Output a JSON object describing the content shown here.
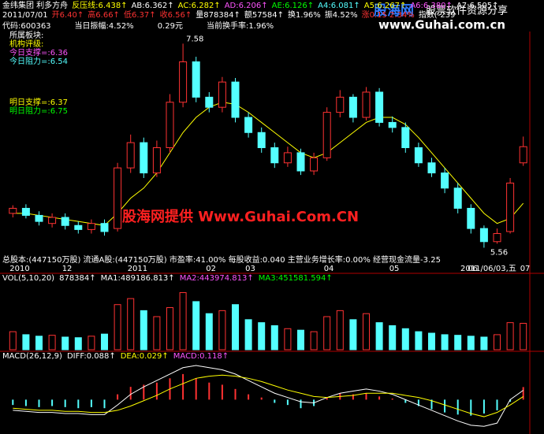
{
  "header": {
    "row1": [
      {
        "text": "金纬集团 利多方舟",
        "color": "#ffffff"
      },
      {
        "text": "反压线:6.438↑",
        "color": "#ffff00"
      },
      {
        "text": "AB:6.362↑",
        "color": "#ffffff"
      },
      {
        "text": "AC:6.282↑",
        "color": "#ffff00"
      },
      {
        "text": "AD:6.206↑",
        "color": "#ff55ff"
      },
      {
        "text": "AE:6.126↑",
        "color": "#00ff00"
      },
      {
        "text": "A4:6.081↑",
        "color": "#54ffff"
      },
      {
        "text": "A5:6.267↑",
        "color": "#ffff00"
      },
      {
        "text": "A6:6.380↑",
        "color": "#ff55ff"
      },
      {
        "text": "A7:6.505↑",
        "color": "#ffffff"
      }
    ],
    "row2": [
      {
        "text": "2011/07/01",
        "color": "#ffffff"
      },
      {
        "text": "开6.40↑",
        "color": "#ff3232"
      },
      {
        "text": "高6.66↑",
        "color": "#ff3232"
      },
      {
        "text": "低6.37↑",
        "color": "#ff3232"
      },
      {
        "text": "收6.56↑",
        "color": "#ff3232"
      },
      {
        "text": "量878384↑",
        "color": "#ffffff"
      },
      {
        "text": "额57584↑",
        "color": "#ffffff"
      },
      {
        "text": "换1.96%",
        "color": "#ffffff"
      },
      {
        "text": "振4.52%",
        "color": "#ffffff"
      },
      {
        "text": "涨0.15 2.34%",
        "color": "#ff3232"
      },
      {
        "text": "指数(-239",
        "color": "#ffffff"
      }
    ]
  },
  "info": {
    "row": [
      {
        "text": "代码:600363",
        "color": "#ffffff"
      },
      {
        "text": "当日振幅:4.52%",
        "color": "#ffffff"
      },
      {
        "text": "0.29元",
        "color": "#ffffff"
      },
      {
        "text": "当前换手率:1.96%",
        "color": "#ffffff"
      }
    ],
    "left": [
      {
        "text": "所属板块:",
        "color": "#ffffff"
      },
      {
        "text": "机构评级:",
        "color": "#ffff00"
      },
      {
        "text": "今日支撑=:6.36",
        "color": "#ff55ff"
      },
      {
        "text": "今日阻力=:6.54",
        "color": "#54ffff"
      },
      {
        "text": "明日支撑=:6.37",
        "color": "#ffff00"
      },
      {
        "text": "明日阻力=:6.75",
        "color": "#00ff00"
      }
    ],
    "footer": "总股本:(447150万股) 流通A股:(447150万股) 市盈率:41.00% 每股收益:0.040 主营业务增长率:0.00% 经营现金流量-3.25"
  },
  "watermark": "股海网提供 Www.Guhai.Com.CN",
  "logo": {
    "name": "股海网",
    "slogan": "股票软件资源分享",
    "url": "www.Guhai.com.cn"
  },
  "cursor_date": "2011/06/03,五",
  "chart_data": [
    {
      "type": "candlestick",
      "up_color": "#ff3232",
      "down_color": "#54ffff",
      "ylim": [
        5.4,
        7.7
      ],
      "categories": [
        "2010",
        null,
        null,
        null,
        "12",
        null,
        null,
        null,
        null,
        "2011",
        null,
        null,
        null,
        null,
        null,
        "02",
        null,
        null,
        "03",
        null,
        null,
        null,
        null,
        null,
        "04",
        null,
        null,
        null,
        null,
        "05",
        null,
        null,
        null,
        null,
        null,
        "06",
        null,
        null,
        null,
        "07"
      ],
      "open": [
        5.9,
        5.95,
        5.88,
        5.8,
        5.86,
        5.78,
        5.74,
        5.8,
        5.75,
        6.35,
        6.6,
        6.3,
        6.55,
        7.0,
        7.4,
        7.05,
        6.95,
        7.2,
        6.85,
        6.7,
        6.55,
        6.4,
        6.5,
        6.32,
        6.45,
        6.9,
        7.05,
        6.85,
        7.1,
        6.8,
        6.75,
        6.55,
        6.4,
        6.3,
        6.15,
        5.95,
        5.75,
        5.62,
        5.72,
        6.4
      ],
      "high": [
        5.98,
        5.99,
        5.92,
        5.9,
        5.9,
        5.82,
        5.84,
        5.84,
        6.4,
        6.68,
        6.65,
        6.62,
        7.08,
        7.58,
        7.45,
        7.1,
        7.25,
        7.24,
        6.9,
        6.75,
        6.6,
        6.56,
        6.54,
        6.5,
        6.95,
        7.12,
        7.08,
        7.15,
        7.14,
        6.86,
        6.8,
        6.6,
        6.45,
        6.35,
        6.2,
        5.99,
        5.78,
        5.75,
        6.25,
        6.66
      ],
      "low": [
        5.86,
        5.85,
        5.78,
        5.76,
        5.74,
        5.7,
        5.7,
        5.68,
        5.72,
        6.3,
        6.25,
        6.26,
        6.5,
        6.95,
        7.0,
        6.9,
        6.9,
        6.8,
        6.65,
        6.5,
        6.35,
        6.36,
        6.28,
        6.28,
        6.42,
        6.85,
        6.8,
        6.82,
        6.76,
        6.7,
        6.5,
        6.36,
        6.26,
        6.1,
        5.9,
        5.7,
        5.56,
        5.6,
        5.7,
        6.37
      ],
      "close": [
        5.95,
        5.88,
        5.82,
        5.86,
        5.78,
        5.74,
        5.8,
        5.72,
        6.35,
        6.6,
        6.3,
        6.55,
        7.0,
        7.4,
        7.05,
        6.95,
        7.2,
        6.85,
        6.7,
        6.55,
        6.4,
        6.5,
        6.32,
        6.45,
        6.9,
        7.05,
        6.85,
        7.1,
        6.8,
        6.75,
        6.55,
        6.4,
        6.3,
        6.15,
        5.95,
        5.75,
        5.62,
        5.7,
        6.2,
        6.56
      ],
      "lines": [
        {
          "color": "#ffff00",
          "values": [
            5.9,
            5.9,
            5.88,
            5.86,
            5.84,
            5.82,
            5.8,
            5.78,
            5.9,
            6.05,
            6.15,
            6.3,
            6.5,
            6.7,
            6.85,
            6.95,
            7.0,
            6.98,
            6.9,
            6.8,
            6.7,
            6.6,
            6.5,
            6.45,
            6.5,
            6.6,
            6.7,
            6.8,
            6.85,
            6.85,
            6.78,
            6.65,
            6.5,
            6.35,
            6.2,
            6.05,
            5.9,
            5.8,
            5.85,
            6.0
          ]
        }
      ]
    },
    {
      "type": "bar",
      "title": "VOL(5,10,20)",
      "legend": [
        {
          "text": "878384↑",
          "color": "#ffffff"
        },
        {
          "text": "MA1:489186.813↑",
          "color": "#ffffff"
        },
        {
          "text": "MA2:443974.813↑",
          "color": "#ff55ff"
        },
        {
          "text": "MA3:451581.594↑",
          "color": "#00ff00"
        }
      ],
      "ylim": [
        0,
        2200000
      ],
      "values": [
        600000,
        500000,
        450000,
        480000,
        420000,
        400000,
        450000,
        520000,
        1500000,
        1700000,
        1300000,
        1100000,
        1400000,
        1900000,
        1600000,
        1200000,
        1300000,
        1500000,
        1000000,
        900000,
        800000,
        700000,
        650000,
        600000,
        1100000,
        1300000,
        1000000,
        1200000,
        900000,
        800000,
        700000,
        600000,
        550000,
        500000,
        480000,
        450000,
        420000,
        500000,
        900000,
        878384
      ]
    },
    {
      "type": "macd",
      "title": "MACD(26,12,9)",
      "legend": [
        {
          "text": "DIFF:0.088↑",
          "color": "#ffffff"
        },
        {
          "text": "DEA:0.029↑",
          "color": "#ffff00"
        },
        {
          "text": "MACD:0.118↑",
          "color": "#ff55ff"
        }
      ],
      "ylim": [
        -0.3,
        0.35
      ],
      "up_color": "#ff3232",
      "down_color": "#54ffff",
      "values": [
        -0.05,
        -0.06,
        -0.07,
        -0.06,
        -0.07,
        -0.08,
        -0.07,
        -0.08,
        0.05,
        0.12,
        0.14,
        0.16,
        0.2,
        0.24,
        0.2,
        0.16,
        0.14,
        0.1,
        0.05,
        0.02,
        -0.03,
        -0.05,
        -0.08,
        -0.06,
        0.02,
        0.06,
        0.05,
        0.06,
        0.03,
        0.01,
        -0.03,
        -0.06,
        -0.09,
        -0.12,
        -0.14,
        -0.15,
        -0.13,
        -0.1,
        -0.02,
        0.118
      ],
      "series": [
        {
          "color": "#ffffff",
          "values": [
            -0.1,
            -0.11,
            -0.12,
            -0.12,
            -0.13,
            -0.13,
            -0.14,
            -0.14,
            -0.05,
            0.05,
            0.12,
            0.18,
            0.24,
            0.3,
            0.32,
            0.3,
            0.28,
            0.24,
            0.18,
            0.12,
            0.06,
            0.02,
            -0.02,
            -0.03,
            0.02,
            0.06,
            0.08,
            0.1,
            0.08,
            0.05,
            0.0,
            -0.05,
            -0.1,
            -0.15,
            -0.2,
            -0.24,
            -0.25,
            -0.22,
            0.0,
            0.088
          ]
        },
        {
          "color": "#ffff00",
          "values": [
            -0.08,
            -0.09,
            -0.1,
            -0.1,
            -0.11,
            -0.11,
            -0.12,
            -0.12,
            -0.1,
            -0.06,
            -0.01,
            0.04,
            0.1,
            0.15,
            0.2,
            0.22,
            0.23,
            0.22,
            0.2,
            0.17,
            0.13,
            0.09,
            0.06,
            0.03,
            0.02,
            0.03,
            0.04,
            0.06,
            0.06,
            0.06,
            0.04,
            0.02,
            -0.01,
            -0.05,
            -0.09,
            -0.13,
            -0.16,
            -0.12,
            -0.05,
            0.029
          ]
        }
      ]
    }
  ]
}
